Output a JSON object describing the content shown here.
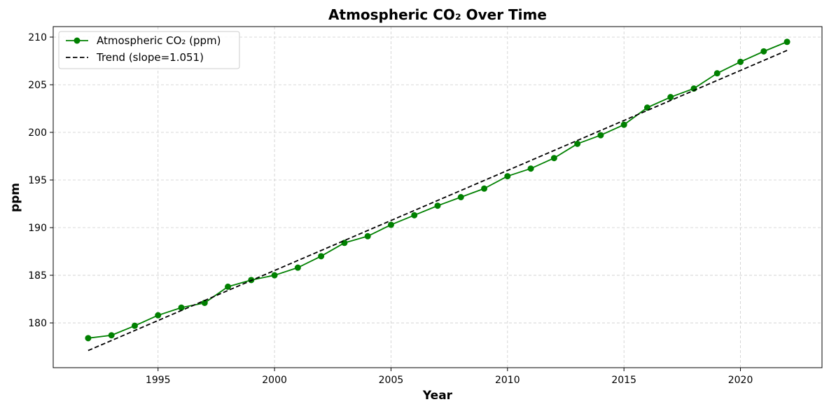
{
  "chart_data": {
    "type": "line",
    "title": "Atmospheric CO₂ Over Time",
    "xlabel": "Year",
    "ylabel": "ppm",
    "xlim": [
      1990.5,
      2023.5
    ],
    "ylim": [
      175.3,
      211.1
    ],
    "xticks": [
      1995,
      2000,
      2005,
      2010,
      2015,
      2020
    ],
    "yticks": [
      180,
      185,
      190,
      195,
      200,
      205,
      210
    ],
    "grid": true,
    "legend_position": "upper left",
    "series": [
      {
        "name": "Atmospheric CO₂ (ppm)",
        "style": "line-marker",
        "color": "#008000",
        "x": [
          1992,
          1993,
          1994,
          1995,
          1996,
          1997,
          1998,
          1999,
          2000,
          2001,
          2002,
          2003,
          2004,
          2005,
          2006,
          2007,
          2008,
          2009,
          2010,
          2011,
          2012,
          2013,
          2014,
          2015,
          2016,
          2017,
          2018,
          2019,
          2020,
          2021,
          2022
        ],
        "y": [
          178.4,
          178.7,
          179.7,
          180.8,
          181.6,
          182.1,
          183.8,
          184.5,
          185.0,
          185.8,
          187.0,
          188.4,
          189.1,
          190.3,
          191.3,
          192.3,
          193.2,
          194.1,
          195.4,
          196.2,
          197.3,
          198.8,
          199.7,
          200.8,
          202.6,
          203.7,
          204.6,
          206.2,
          207.4,
          208.5,
          209.5
        ]
      },
      {
        "name": "Trend (slope=1.051)",
        "style": "dashed",
        "color": "#000000",
        "x": [
          1992,
          2022
        ],
        "y": [
          177.1,
          208.6
        ]
      }
    ]
  }
}
